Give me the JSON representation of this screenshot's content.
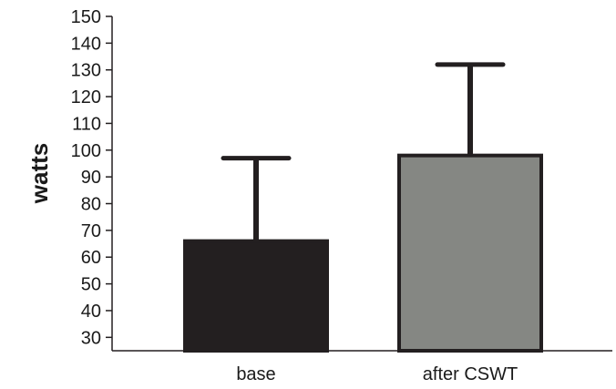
{
  "chart_data": {
    "type": "bar",
    "title": "",
    "xlabel": "",
    "ylabel": "watts",
    "ylim": [
      25,
      150
    ],
    "yticks": [
      30,
      40,
      50,
      60,
      70,
      80,
      90,
      100,
      110,
      120,
      130,
      140,
      150
    ],
    "categories": [
      "base",
      "after CSWT"
    ],
    "values": [
      66,
      98
    ],
    "error_upper": [
      97,
      132
    ],
    "bar_colors": [
      "#231f20",
      "#858783"
    ],
    "grid": false,
    "legend": "none"
  }
}
